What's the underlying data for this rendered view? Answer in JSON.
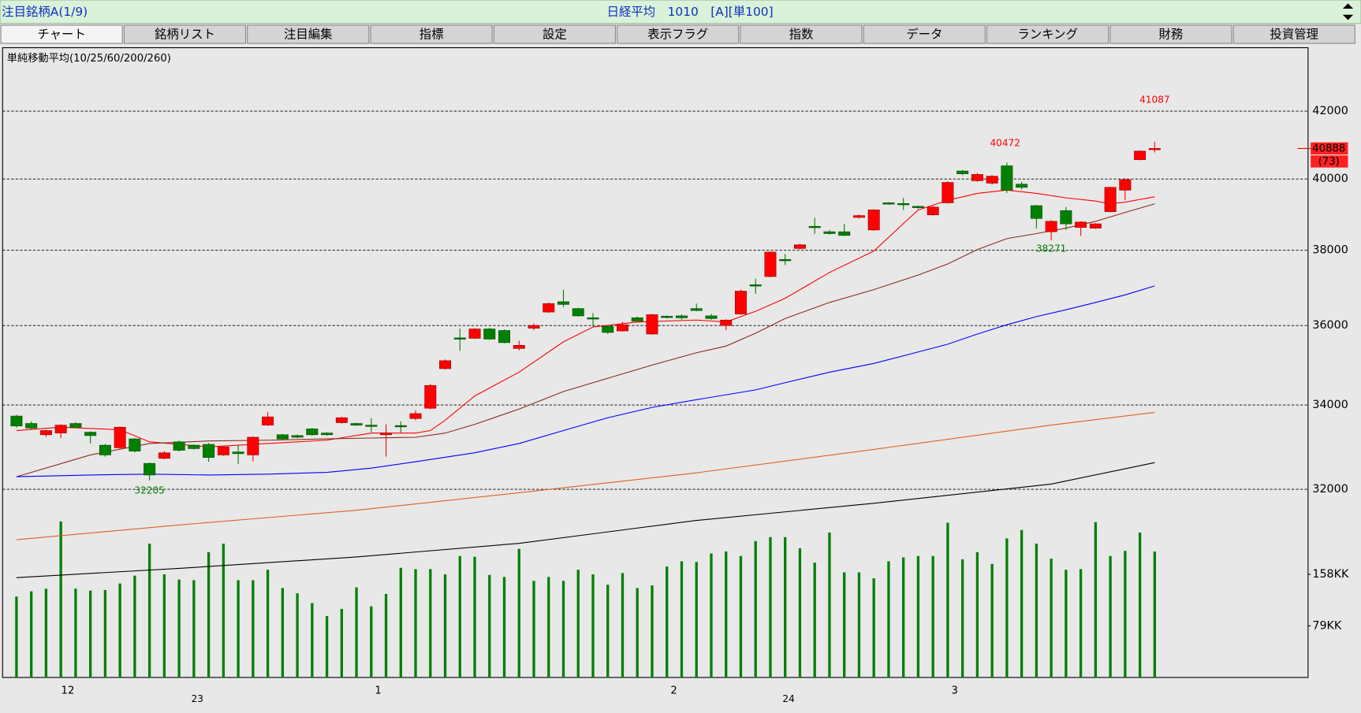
{
  "header": {
    "title": "注目銘柄A(1/9)",
    "center": "日経平均　1010　[A][単100]"
  },
  "tabs": [
    "チャート",
    "銘柄リスト",
    "注目編集",
    "指標",
    "設定",
    "表示フラグ",
    "指数",
    "データ",
    "ランキング",
    "財務",
    "投資管理"
  ],
  "chart_data": {
    "type": "candlestick",
    "title": "単純移動平均(10/25/60/200/260)",
    "categories": [
      null,
      null,
      null,
      "12",
      null,
      null,
      null,
      null,
      null,
      null,
      null,
      null,
      null,
      null,
      null,
      null,
      null,
      null,
      null,
      null,
      null,
      null,
      null,
      null,
      "1",
      null,
      null,
      null,
      null,
      null,
      null,
      null,
      null,
      null,
      null,
      null,
      null,
      null,
      null,
      null,
      null,
      null,
      null,
      null,
      "2",
      null,
      null,
      null,
      null,
      null,
      null,
      null,
      null,
      null,
      null,
      null,
      null,
      null,
      null,
      null,
      null,
      null,
      null,
      "3",
      null,
      null,
      null,
      null,
      null,
      null,
      null,
      null,
      null,
      null,
      null,
      null,
      null,
      null
    ],
    "year_labels": [
      null,
      null,
      null,
      null,
      null,
      null,
      null,
      null,
      null,
      null,
      null,
      null,
      "23",
      null,
      null,
      null,
      null,
      null,
      null,
      null,
      null,
      null,
      null,
      null,
      null,
      null,
      null,
      null,
      null,
      null,
      null,
      null,
      null,
      null,
      null,
      null,
      null,
      null,
      null,
      null,
      null,
      null,
      null,
      null,
      null,
      null,
      null,
      null,
      null,
      null,
      null,
      null,
      "24",
      null,
      null,
      null,
      null,
      null,
      null,
      null,
      null,
      null,
      null,
      null,
      null,
      null,
      null,
      null,
      null,
      null,
      null,
      null,
      null,
      null,
      null,
      null,
      null,
      null
    ],
    "open": [
      33730,
      33550,
      33280,
      33320,
      33550,
      33340,
      33030,
      32970,
      33180,
      32600,
      32720,
      33110,
      33030,
      33050,
      32800,
      32870,
      32800,
      33510,
      33280,
      33260,
      33420,
      33320,
      33570,
      33550,
      33510,
      33280,
      33500,
      33670,
      33920,
      34900,
      35680,
      35670,
      35910,
      35870,
      35410,
      35930,
      36350,
      36620,
      36440,
      36200,
      35980,
      35860,
      36200,
      35780,
      36240,
      36250,
      36440,
      36250,
      36000,
      36300,
      37070,
      37290,
      37750,
      38050,
      38660,
      38510,
      38510,
      38910,
      38560,
      39320,
      39300,
      39220,
      38980,
      39320,
      40230,
      39950,
      39880,
      40380,
      39850,
      39240,
      38510,
      39100,
      38630,
      38610,
      39070,
      39680,
      40560,
      40880
    ],
    "high": [
      33760,
      33600,
      33400,
      33530,
      33580,
      33360,
      33060,
      33480,
      33200,
      32620,
      32890,
      33140,
      33050,
      33080,
      33010,
      33030,
      33240,
      33830,
      33300,
      33280,
      33440,
      33340,
      33710,
      33570,
      33680,
      33530,
      33600,
      33870,
      34520,
      35130,
      35920,
      35930,
      35940,
      35900,
      35610,
      36050,
      36600,
      36940,
      36460,
      36320,
      36000,
      36100,
      36230,
      36300,
      36260,
      36290,
      36570,
      36300,
      36160,
      36940,
      37230,
      37970,
      37900,
      38180,
      38900,
      38560,
      38730,
      38990,
      39140,
      39340,
      39460,
      39240,
      39230,
      39930,
      40260,
      40170,
      40110,
      40472,
      39920,
      39260,
      38830,
      39200,
      38800,
      38750,
      39780,
      40020,
      40830,
      41087
    ],
    "low": [
      33450,
      33400,
      33230,
      33200,
      33440,
      33070,
      32760,
      32950,
      32860,
      32205,
      32700,
      32880,
      32930,
      32640,
      32780,
      32590,
      32650,
      33490,
      33160,
      33200,
      33260,
      33260,
      33550,
      33490,
      33340,
      32760,
      33330,
      33630,
      33900,
      34880,
      35350,
      35650,
      35630,
      35540,
      35360,
      35880,
      36330,
      36480,
      36230,
      35960,
      35780,
      35840,
      36090,
      35760,
      36180,
      36150,
      36370,
      36150,
      35880,
      36280,
      36830,
      37270,
      37600,
      38030,
      38450,
      38430,
      38390,
      38880,
      38540,
      39270,
      39120,
      39150,
      38960,
      39300,
      40110,
      39920,
      39840,
      39600,
      39700,
      38600,
      38271,
      38560,
      38400,
      38590,
      39050,
      39400,
      40540,
      40770
    ],
    "close": [
      33490,
      33440,
      33380,
      33510,
      33460,
      33260,
      32800,
      33460,
      32890,
      32330,
      32850,
      32910,
      32950,
      32740,
      32990,
      32830,
      33220,
      33710,
      33180,
      33220,
      33280,
      33280,
      33690,
      33510,
      33500,
      33320,
      33490,
      33790,
      34480,
      35100,
      35660,
      35910,
      35650,
      35560,
      35490,
      36000,
      36570,
      36550,
      36250,
      36180,
      35820,
      36020,
      36110,
      36280,
      36230,
      36200,
      36390,
      36180,
      36140,
      36900,
      37060,
      37950,
      37730,
      38150,
      38650,
      38460,
      38410,
      38960,
      39120,
      39290,
      39290,
      39200,
      39200,
      39900,
      40150,
      40130,
      40080,
      39680,
      39760,
      38880,
      38800,
      38730,
      38780,
      38730,
      39760,
      39980,
      40810,
      40888
    ],
    "up_color": "#ff0000",
    "down_color": "#008000",
    "change_label": "(73)",
    "log_scale": true,
    "ylim": [
      27950,
      43960
    ],
    "yticks": [
      32000,
      34000,
      36000,
      38000,
      40000,
      42000
    ],
    "grid": true,
    "moving_averages": [
      {
        "color": "#ff0000",
        "x": [
          0,
          3,
          7,
          9,
          13,
          17,
          21,
          24,
          27,
          28,
          29,
          31,
          34,
          37,
          39,
          42,
          46,
          48,
          50,
          52,
          55,
          58,
          61,
          63,
          65,
          67,
          69,
          71,
          73,
          74,
          75,
          77
        ],
        "values": [
          33380,
          33460,
          33400,
          33110,
          32990,
          33070,
          33150,
          33320,
          33320,
          33380,
          33630,
          34220,
          34810,
          35580,
          35960,
          36090,
          36140,
          36090,
          36370,
          36710,
          37400,
          37980,
          39120,
          39390,
          39590,
          39680,
          39590,
          39460,
          39370,
          39290,
          39340,
          39490
        ]
      },
      {
        "color": "#8b2c1c",
        "x": [
          0,
          5,
          9,
          13,
          17,
          21,
          24,
          27,
          29,
          31,
          34,
          37,
          40,
          43,
          46,
          48,
          50,
          52,
          55,
          58,
          61,
          63,
          65,
          67,
          69,
          71,
          73,
          75,
          77
        ],
        "values": [
          32290,
          32800,
          33070,
          33130,
          33150,
          33180,
          33200,
          33220,
          33320,
          33530,
          33900,
          34330,
          34660,
          34990,
          35300,
          35470,
          35800,
          36180,
          36600,
          36940,
          37330,
          37630,
          38020,
          38320,
          38460,
          38610,
          38800,
          39050,
          39290
        ]
      },
      {
        "color": "#0000ff",
        "x": [
          0,
          5,
          9,
          13,
          17,
          21,
          24,
          27,
          31,
          34,
          37,
          40,
          43,
          46,
          50,
          52,
          55,
          58,
          61,
          63,
          65,
          67,
          69,
          71,
          73,
          75,
          77
        ],
        "values": [
          32290,
          32330,
          32350,
          32330,
          32350,
          32390,
          32490,
          32640,
          32850,
          33070,
          33380,
          33690,
          33940,
          34130,
          34370,
          34550,
          34810,
          35030,
          35320,
          35520,
          35780,
          36020,
          36230,
          36410,
          36600,
          36800,
          37040
        ]
      },
      {
        "color": "#e06020",
        "x": [
          0,
          11,
          23,
          34,
          46,
          58,
          70,
          77
        ],
        "values": [
          30860,
          31190,
          31520,
          31920,
          32380,
          32930,
          33510,
          33820
        ]
      },
      {
        "color": "#000000",
        "x": [
          0,
          11,
          23,
          34,
          46,
          58,
          70,
          77
        ],
        "values": [
          30030,
          30230,
          30480,
          30780,
          31290,
          31680,
          32120,
          32620
        ]
      }
    ],
    "volume": {
      "color": "#008000",
      "values": [
        124,
        132,
        136,
        239,
        136,
        133,
        134,
        144,
        156,
        205,
        158,
        150,
        149,
        192,
        205,
        149,
        149,
        165,
        137,
        129,
        114,
        94,
        105,
        138,
        109,
        128,
        168,
        166,
        166,
        158,
        186,
        185,
        157,
        154,
        197,
        148,
        154,
        148,
        165,
        158,
        142,
        160,
        137,
        141,
        170,
        178,
        177,
        190,
        193,
        186,
        209,
        215,
        215,
        198,
        176,
        222,
        161,
        161,
        152,
        178,
        184,
        186,
        186,
        237,
        181,
        192,
        174,
        213,
        226,
        205,
        182,
        165,
        166,
        238,
        186,
        194,
        222,
        193
      ],
      "ylim": [
        0,
        965
      ],
      "yticks": [
        {
          "value": 79,
          "label": "79KK"
        },
        {
          "value": 158,
          "label": "158KK"
        }
      ]
    }
  }
}
